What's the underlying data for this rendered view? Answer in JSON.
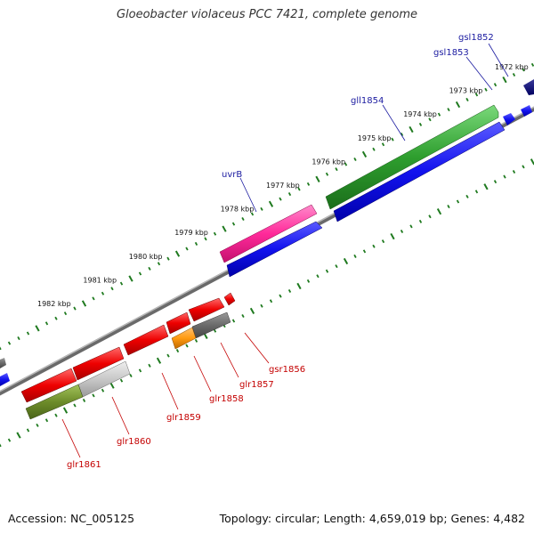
{
  "title": "Gloeobacter violaceus PCC 7421, complete genome",
  "footer": {
    "accession": "Accession: NC_005125",
    "topology": "Topology: circular; Length: 4,659,019 bp; Genes: 4,482"
  },
  "ticks": [
    "1972 kbp",
    "1973 kbp",
    "1974 kbp",
    "1975 kbp",
    "1976 kbp",
    "1977 kbp",
    "1978 kbp",
    "1979 kbp",
    "1980 kbp",
    "1981 kbp",
    "1982 kbp"
  ],
  "colors": {
    "forward_label": "#1a1aa0",
    "reverse_label": "#c40000",
    "backbone": "#888888",
    "tick": "#1f7a1f"
  },
  "genes_forward": [
    {
      "name": "gsl1852"
    },
    {
      "name": "gsl1853"
    },
    {
      "name": "gll1854"
    },
    {
      "name": "uvrB"
    }
  ],
  "genes_reverse": [
    {
      "name": "gsr1856"
    },
    {
      "name": "glr1857"
    },
    {
      "name": "glr1858"
    },
    {
      "name": "glr1859"
    },
    {
      "name": "glr1860"
    },
    {
      "name": "glr1861"
    }
  ]
}
